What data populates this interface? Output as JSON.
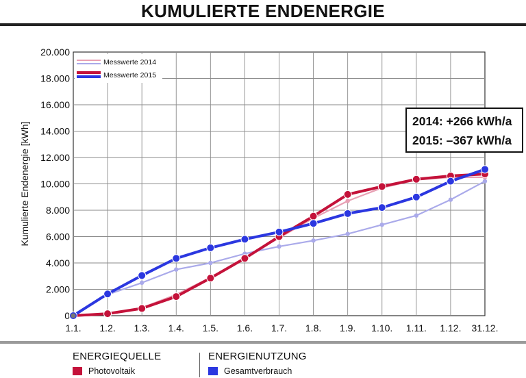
{
  "title": "KUMULIERTE ENDENERGIE",
  "annotations": [
    "2014: +266 kWh/a",
    "2015: –367 kWh/a"
  ],
  "bottom_legend": {
    "source": {
      "heading": "ENERGIEQUELLE",
      "item": "Photovoltaik",
      "color": "#c4123a"
    },
    "usage": {
      "heading": "ENERGIENUTZUNG",
      "item": "Gesamtverbrauch",
      "color": "#2b37e0"
    }
  },
  "chart_data": {
    "type": "line",
    "ylabel": "Kumulierte Endenergie [kWh]",
    "xlabel": "",
    "categories": [
      "1.1.",
      "1.2.",
      "1.3.",
      "1.4.",
      "1.5.",
      "1.6.",
      "1.7.",
      "1.8.",
      "1.9.",
      "1.10.",
      "1.11.",
      "1.12.",
      "31.12."
    ],
    "ylim": [
      0,
      20000
    ],
    "yticks": [
      0,
      2000,
      4000,
      6000,
      8000,
      10000,
      12000,
      14000,
      16000,
      18000,
      20000
    ],
    "ytick_labels": [
      "0",
      "2.000",
      "4.000",
      "6.000",
      "8.000",
      "10.000",
      "12.000",
      "14.000",
      "16.000",
      "18.000",
      "20.000"
    ],
    "grid": true,
    "legend": {
      "placement": "top-left",
      "entries": [
        "Messwerte 2014",
        "Messwerte 2015"
      ]
    },
    "series": [
      {
        "year": "2014",
        "source": "Photovoltaik",
        "color": "#e8a0b4",
        "values": [
          0,
          150,
          600,
          1600,
          2900,
          4400,
          5900,
          7400,
          8700,
          9700,
          10300,
          10500,
          10500
        ]
      },
      {
        "year": "2014",
        "source": "Gesamtverbrauch",
        "color": "#aaaaea",
        "values": [
          0,
          1600,
          2500,
          3500,
          4000,
          4700,
          5250,
          5700,
          6200,
          6900,
          7600,
          8800,
          10200
        ]
      },
      {
        "year": "2015",
        "source": "Photovoltaik",
        "color": "#c4123a",
        "values": [
          0,
          150,
          550,
          1450,
          2850,
          4350,
          6000,
          7550,
          9200,
          9800,
          10350,
          10600,
          10750
        ]
      },
      {
        "year": "2015",
        "source": "Gesamtverbrauch",
        "color": "#2b37e0",
        "values": [
          0,
          1650,
          3050,
          4350,
          5150,
          5800,
          6350,
          7000,
          7750,
          8200,
          9000,
          10200,
          11100
        ]
      }
    ]
  }
}
